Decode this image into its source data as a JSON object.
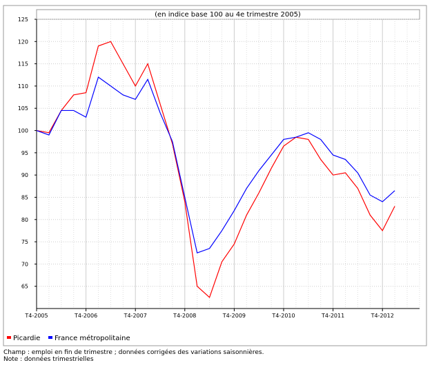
{
  "chart_data": {
    "type": "line",
    "title": "(en indice base 100 au 4e trimestre 2005)",
    "categories": [
      "T4-2005",
      null,
      null,
      null,
      "T4-2006",
      null,
      null,
      null,
      "T4-2007",
      null,
      null,
      null,
      "T4-2008",
      null,
      null,
      null,
      "T4-2009",
      null,
      null,
      null,
      "T4-2010",
      null,
      null,
      null,
      "T4-2011",
      null,
      null,
      null,
      "T4-2012",
      null
    ],
    "series": [
      {
        "name": "Picardie",
        "color": "#ff0000",
        "values": [
          100,
          99.5,
          104.5,
          108,
          108.5,
          119,
          120,
          115,
          110,
          115,
          106,
          97,
          84,
          65,
          62.5,
          70.5,
          74.5,
          81,
          86,
          91.5,
          96.5,
          98.5,
          98,
          93.5,
          90,
          90.5,
          87,
          81,
          77.5,
          83
        ]
      },
      {
        "name": "France métropolitaine",
        "color": "#0000ff",
        "values": [
          100,
          99,
          104.5,
          104.5,
          103,
          112,
          110,
          108,
          107,
          111.5,
          104,
          97.5,
          85,
          72.5,
          73.5,
          77.5,
          82,
          87,
          91,
          94.5,
          98,
          98.5,
          99.5,
          98,
          94.5,
          93.5,
          90.5,
          85.5,
          84,
          86.5
        ]
      }
    ],
    "ylim": [
      60,
      125
    ],
    "yticks": [
      65,
      70,
      75,
      80,
      85,
      90,
      95,
      100,
      105,
      110,
      115,
      120,
      125
    ],
    "grid": true,
    "legend": "bottom",
    "notes": [
      "Champ : emploi en fin de trimestre ; données corrigées des variations saisonnières.",
      "Note : données trimestrielles"
    ]
  }
}
